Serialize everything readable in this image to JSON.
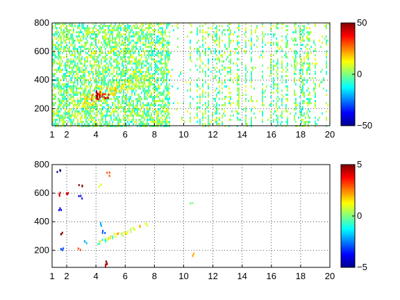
{
  "chart_data": [
    {
      "type": "heatmap",
      "title": "",
      "xlabel": "",
      "ylabel": "",
      "xlim": [
        1,
        20
      ],
      "ylim": [
        80,
        800
      ],
      "x_ticks": [
        1,
        2,
        4,
        6,
        8,
        10,
        12,
        14,
        16,
        18,
        20
      ],
      "x_tick_labels": [
        "1",
        "2",
        "4",
        "6",
        "8",
        "10",
        "12",
        "14",
        "16",
        "18",
        "20"
      ],
      "y_ticks": [
        200,
        400,
        600,
        800
      ],
      "y_tick_labels": [
        "200",
        "400",
        "600",
        "800"
      ],
      "grid": true,
      "colorbar": {
        "colormap": "jet",
        "clim": [
          -50,
          50
        ],
        "ticks": [
          -50,
          0,
          50
        ],
        "tick_labels": [
          "−50",
          "0",
          "50"
        ]
      },
      "ridge_cells": [
        {
          "x": 3.0,
          "y": 240,
          "value": 14
        },
        {
          "x": 3.5,
          "y": 260,
          "value": 20
        },
        {
          "x": 4.0,
          "y": 280,
          "value": 28
        },
        {
          "x": 4.3,
          "y": 300,
          "value": 48
        },
        {
          "x": 4.5,
          "y": 310,
          "value": 42
        },
        {
          "x": 5.0,
          "y": 330,
          "value": 22
        },
        {
          "x": 5.5,
          "y": 350,
          "value": 16
        },
        {
          "x": 6.0,
          "y": 370,
          "value": 13
        },
        {
          "x": 6.5,
          "y": 380,
          "value": 10
        },
        {
          "x": 7.0,
          "y": 400,
          "value": 8
        }
      ],
      "background_value_range": [
        -12,
        12
      ],
      "density": "dense for x < 9, sparse vertical streaks for x > 9"
    },
    {
      "type": "heatmap",
      "title": "",
      "xlabel": "",
      "ylabel": "",
      "xlim": [
        1,
        20
      ],
      "ylim": [
        80,
        800
      ],
      "x_ticks": [
        1,
        2,
        4,
        6,
        8,
        10,
        12,
        14,
        16,
        18,
        20
      ],
      "x_tick_labels": [
        "1",
        "2",
        "4",
        "6",
        "8",
        "10",
        "12",
        "14",
        "16",
        "18",
        "20"
      ],
      "y_ticks": [
        200,
        400,
        600,
        800
      ],
      "y_tick_labels": [
        "200",
        "400",
        "600",
        "800"
      ],
      "grid": true,
      "colorbar": {
        "colormap": "jet",
        "clim": [
          -5,
          5
        ],
        "ticks": [
          -5,
          0,
          5
        ],
        "tick_labels": [
          "−5",
          "0",
          "5"
        ]
      },
      "cells": [
        {
          "x": 4.1,
          "y": 260,
          "value": -0.5
        },
        {
          "x": 4.3,
          "y": 270,
          "value": 1
        },
        {
          "x": 4.5,
          "y": 280,
          "value": -1
        },
        {
          "x": 4.7,
          "y": 285,
          "value": 0.5
        },
        {
          "x": 4.9,
          "y": 295,
          "value": 1.5
        },
        {
          "x": 5.1,
          "y": 300,
          "value": -0.5
        },
        {
          "x": 5.3,
          "y": 310,
          "value": 1
        },
        {
          "x": 5.5,
          "y": 315,
          "value": 2
        },
        {
          "x": 5.7,
          "y": 320,
          "value": 0.5
        },
        {
          "x": 5.9,
          "y": 330,
          "value": 1.5
        },
        {
          "x": 6.1,
          "y": 335,
          "value": 1
        },
        {
          "x": 6.3,
          "y": 345,
          "value": 0.5
        },
        {
          "x": 6.6,
          "y": 360,
          "value": 1
        },
        {
          "x": 7.0,
          "y": 375,
          "value": 2
        },
        {
          "x": 7.4,
          "y": 385,
          "value": 1
        },
        {
          "x": 4.4,
          "y": 390,
          "value": -2
        },
        {
          "x": 4.5,
          "y": 340,
          "value": -3
        },
        {
          "x": 4.6,
          "y": 120,
          "value": 5
        },
        {
          "x": 4.7,
          "y": 100,
          "value": 4
        },
        {
          "x": 4.3,
          "y": 660,
          "value": 1
        },
        {
          "x": 4.8,
          "y": 740,
          "value": 3
        },
        {
          "x": 1.4,
          "y": 760,
          "value": -5
        },
        {
          "x": 1.5,
          "y": 600,
          "value": 4
        },
        {
          "x": 1.5,
          "y": 500,
          "value": -4
        },
        {
          "x": 1.6,
          "y": 320,
          "value": 5
        },
        {
          "x": 1.6,
          "y": 220,
          "value": -3
        },
        {
          "x": 2.0,
          "y": 610,
          "value": 4
        },
        {
          "x": 2.9,
          "y": 660,
          "value": 5
        },
        {
          "x": 2.9,
          "y": 580,
          "value": -4
        },
        {
          "x": 2.8,
          "y": 220,
          "value": 3
        },
        {
          "x": 3.2,
          "y": 260,
          "value": -2
        },
        {
          "x": 10.5,
          "y": 540,
          "value": 0
        },
        {
          "x": 10.6,
          "y": 175,
          "value": 2
        }
      ]
    }
  ]
}
